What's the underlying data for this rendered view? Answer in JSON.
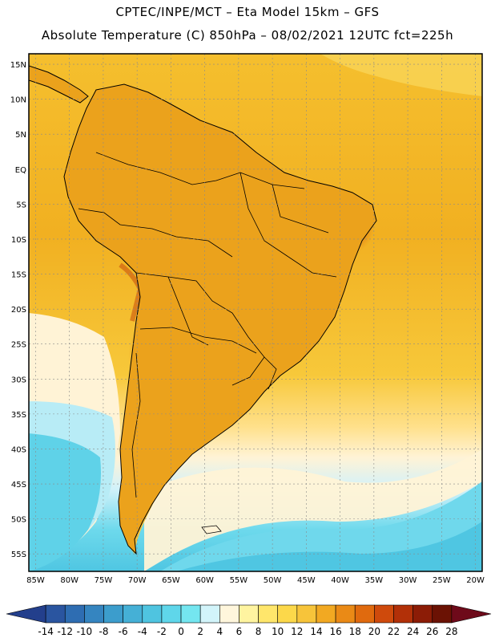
{
  "header": {
    "line1": "CPTEC/INPE/MCT –  Eta Model 15km – GFS",
    "line2": "Absolute Temperature (C) 850hPa – 08/02/2021 12UTC fct=225h"
  },
  "map": {
    "latitude_labels": [
      "15N",
      "10N",
      "5N",
      "EQ",
      "5S",
      "10S",
      "15S",
      "20S",
      "25S",
      "30S",
      "35S",
      "40S",
      "45S",
      "50S",
      "55S"
    ],
    "latitude_values": [
      15,
      10,
      5,
      0,
      -5,
      -10,
      -15,
      -20,
      -25,
      -30,
      -35,
      -40,
      -45,
      -50,
      -55
    ],
    "longitude_labels": [
      "85W",
      "80W",
      "75W",
      "70W",
      "65W",
      "60W",
      "55W",
      "50W",
      "45W",
      "40W",
      "35W",
      "30W",
      "25W",
      "20W"
    ],
    "longitude_values": [
      -85,
      -80,
      -75,
      -70,
      -65,
      -60,
      -55,
      -50,
      -45,
      -40,
      -35,
      -30,
      -25,
      -20
    ],
    "lon_range": [
      -86,
      -19
    ],
    "lat_range": [
      -57.5,
      16.5
    ]
  },
  "colorbar": {
    "labels": [
      "-14",
      "-12",
      "-10",
      "-8",
      "-6",
      "-4",
      "-2",
      "0",
      "2",
      "4",
      "6",
      "8",
      "10",
      "12",
      "14",
      "16",
      "18",
      "20",
      "22",
      "24",
      "26",
      "28"
    ],
    "colors": [
      "#233f8c",
      "#2a55a0",
      "#2e6db2",
      "#3585c0",
      "#3c9dcc",
      "#45b0d6",
      "#4fc4e0",
      "#5fd6ea",
      "#74e6f0",
      "#d2f4fa",
      "#fff6dc",
      "#fff4a0",
      "#ffe66b",
      "#fcd84a",
      "#f7c43a",
      "#f2a922",
      "#ea8a16",
      "#e06a0e",
      "#cf4a0c",
      "#b23008",
      "#8c1c06",
      "#6b1204",
      "#6e0a1a"
    ]
  }
}
